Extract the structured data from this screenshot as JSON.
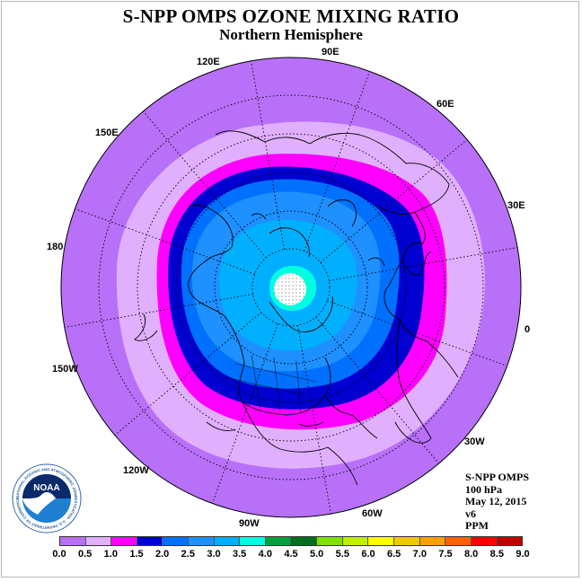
{
  "title": "S-NPP OMPS OZONE MIXING RATIO",
  "subtitle": "Northern Hemisphere",
  "info_lines": [
    "S-NPP OMPS",
    "100 hPa",
    "May 12, 2015",
    "v6",
    "PPM"
  ],
  "logo": {
    "text": "NOAA",
    "ring_text": "NATIONAL OCEANIC AND ATMOSPHERIC ADMINISTRATION · U.S. DEPARTMENT OF COMMERCE"
  },
  "longitude_labels": [
    {
      "name": "lon-90e",
      "text": "90E"
    },
    {
      "name": "lon-60e",
      "text": "60E"
    },
    {
      "name": "lon-30e",
      "text": "30E"
    },
    {
      "name": "lon-0",
      "text": "0"
    },
    {
      "name": "lon-30w",
      "text": "30W"
    },
    {
      "name": "lon-60w",
      "text": "60W"
    },
    {
      "name": "lon-90w",
      "text": "90W"
    },
    {
      "name": "lon-120w",
      "text": "120W"
    },
    {
      "name": "lon-150w",
      "text": "150W"
    },
    {
      "name": "lon-180",
      "text": "180"
    },
    {
      "name": "lon-150e",
      "text": "150E"
    },
    {
      "name": "lon-120e",
      "text": "120E"
    }
  ],
  "colorbar": {
    "labels": [
      "0.0",
      "0.5",
      "1.0",
      "1.5",
      "2.0",
      "2.5",
      "3.0",
      "3.5",
      "4.0",
      "4.5",
      "5.0",
      "5.5",
      "6.0",
      "6.5",
      "7.0",
      "7.5",
      "8.0",
      "8.5",
      "9.0"
    ],
    "colors": [
      "#b870f8",
      "#e0b0ff",
      "#ff00ff",
      "#0000d0",
      "#0070ff",
      "#1e90ff",
      "#00b0ff",
      "#00ffe0",
      "#00a040",
      "#007020",
      "#80e000",
      "#c0f000",
      "#ffff00",
      "#f0c800",
      "#ffa000",
      "#ff6000",
      "#ff0000",
      "#c00000"
    ]
  }
}
